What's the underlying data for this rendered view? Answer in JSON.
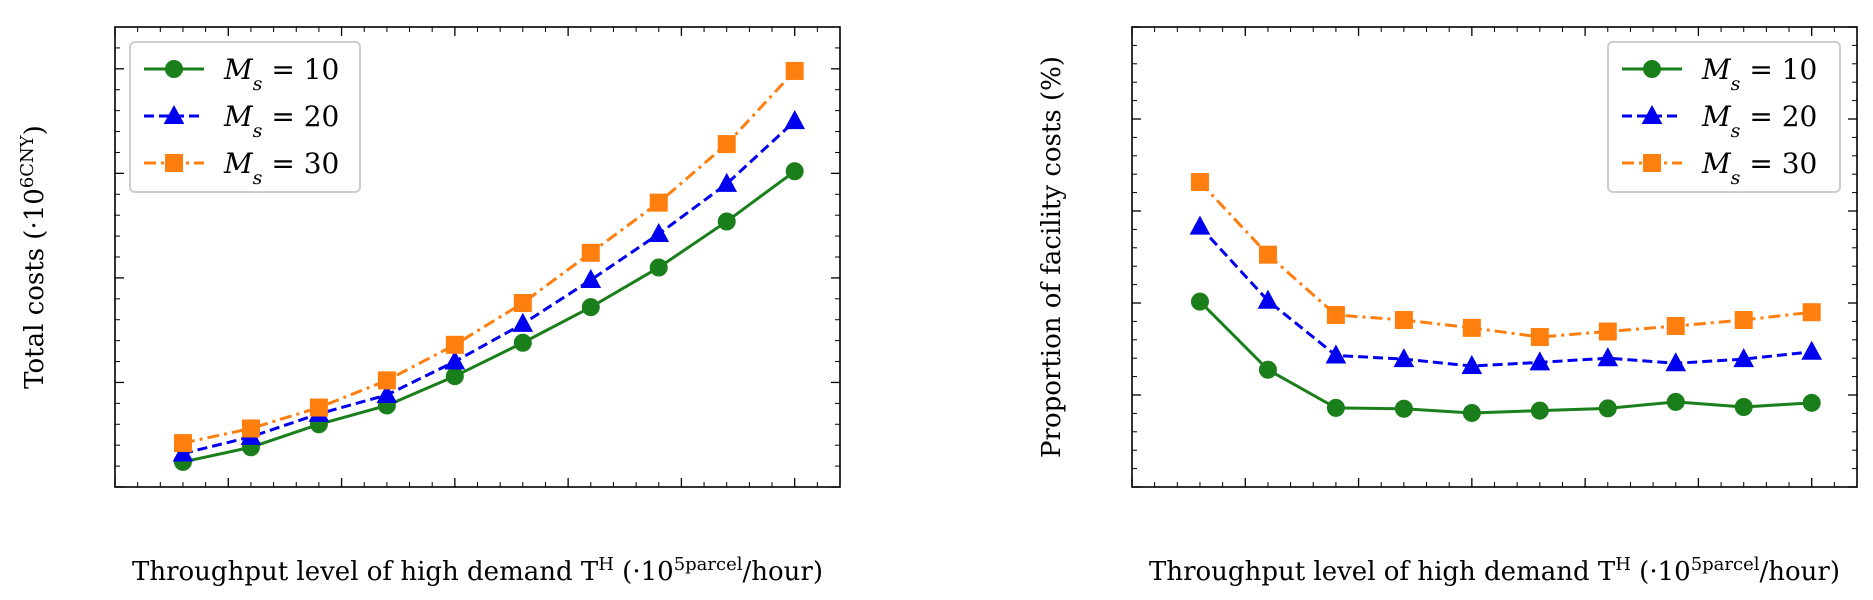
{
  "chart_data": [
    {
      "type": "line",
      "xlabel": "Throughput level of high demand T^H (·10^5parcel/hour)",
      "ylabel": "Total costs (·10^6CNY)",
      "xlim": [
        0.0,
        3.2
      ],
      "ylim": [
        0,
        22
      ],
      "xticks": [
        "0.0",
        "0.5",
        "1.0",
        "1.5",
        "2.0",
        "2.5",
        "3.0"
      ],
      "yticks": [
        "0",
        "5",
        "10",
        "15",
        "20"
      ],
      "x": [
        0.3,
        0.6,
        0.9,
        1.2,
        1.5,
        1.8,
        2.1,
        2.4,
        2.7,
        3.0
      ],
      "legend_position": "top-left",
      "series": [
        {
          "name": "M_s = 10",
          "color": "#1a7f1a",
          "linestyle": "solid",
          "marker": "circle",
          "values": [
            1.2,
            1.9,
            3.0,
            3.9,
            5.3,
            6.9,
            8.6,
            10.5,
            12.7,
            15.1
          ]
        },
        {
          "name": "M_s = 20",
          "color": "#0000ee",
          "linestyle": "dashed",
          "marker": "triangle",
          "values": [
            1.6,
            2.4,
            3.5,
            4.4,
            6.0,
            7.8,
            9.9,
            12.1,
            14.5,
            17.5
          ]
        },
        {
          "name": "M_s = 30",
          "color": "#ff7f0e",
          "linestyle": "dashdot",
          "marker": "square",
          "values": [
            2.1,
            2.8,
            3.8,
            5.1,
            6.8,
            8.8,
            11.2,
            13.6,
            16.4,
            19.9
          ]
        }
      ]
    },
    {
      "type": "line",
      "xlabel": "Throughput level of high demand T^H (·10^5parcel/hour)",
      "ylabel": "Proportion of facility costs (%)",
      "xlim": [
        0.0,
        3.2
      ],
      "ylim": [
        0,
        100
      ],
      "xticks": [
        "0.0",
        "0.5",
        "1.0",
        "1.5",
        "2.0",
        "2.5",
        "3.0"
      ],
      "yticks": [
        "0",
        "20",
        "40",
        "60",
        "80",
        "100"
      ],
      "x": [
        0.3,
        0.6,
        0.9,
        1.2,
        1.5,
        1.8,
        2.1,
        2.4,
        2.7,
        3.0
      ],
      "legend_position": "top-right",
      "series": [
        {
          "name": "M_s = 10",
          "color": "#1a7f1a",
          "linestyle": "solid",
          "marker": "circle",
          "values": [
            40.3,
            25.5,
            17.2,
            17.0,
            16.1,
            16.6,
            17.1,
            18.5,
            17.4,
            18.3
          ]
        },
        {
          "name": "M_s = 20",
          "color": "#0000ee",
          "linestyle": "dashed",
          "marker": "triangle",
          "values": [
            56.6,
            40.5,
            28.6,
            27.8,
            26.3,
            27.1,
            28.0,
            26.9,
            27.8,
            29.4
          ]
        },
        {
          "name": "M_s = 30",
          "color": "#ff7f0e",
          "linestyle": "dashdot",
          "marker": "square",
          "values": [
            66.3,
            50.5,
            37.4,
            36.3,
            34.6,
            32.6,
            33.8,
            35.0,
            36.3,
            38.0
          ]
        }
      ]
    }
  ]
}
